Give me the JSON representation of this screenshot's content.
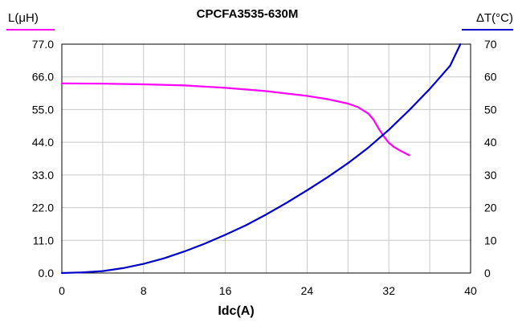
{
  "chart_data": {
    "type": "line",
    "title": "CPCFA3535-630M",
    "xlabel": "Idc(A)",
    "ylabel_left": "L(μH)",
    "ylabel_right": "ΔT(°C)",
    "xlim": [
      0,
      40
    ],
    "ylim_left": [
      0,
      77
    ],
    "ylim_right": [
      0,
      70
    ],
    "x_ticks": [
      "0",
      "8",
      "16",
      "24",
      "32",
      "40"
    ],
    "y_left_ticks": [
      "0.0",
      "11.0",
      "22.0",
      "33.0",
      "44.0",
      "55.0",
      "66.0",
      "77.0"
    ],
    "y_right_ticks": [
      "0",
      "10",
      "20",
      "30",
      "40",
      "50",
      "60",
      "70"
    ],
    "grid": true,
    "colors": {
      "inductance": "#ff00ff",
      "temperature": "#0000cc",
      "grid": "#c8c8c8"
    },
    "series": [
      {
        "axis": "left",
        "color": "#ff00ff",
        "x": [
          0,
          4,
          8,
          12,
          16,
          20,
          24,
          26,
          28,
          29,
          30,
          30.5,
          31,
          31.5,
          32,
          32.5,
          33,
          34
        ],
        "y": [
          63.8,
          63.7,
          63.5,
          63.1,
          62.3,
          61.2,
          59.6,
          58.5,
          57.0,
          55.8,
          53.6,
          51.6,
          48.6,
          46.0,
          43.8,
          42.4,
          41.4,
          39.6
        ]
      },
      {
        "axis": "right",
        "color": "#0000cc",
        "x": [
          0,
          2,
          4,
          6,
          8,
          10,
          12,
          14,
          16,
          18,
          20,
          22,
          24,
          26,
          28,
          30,
          32,
          34,
          36,
          38,
          39
        ],
        "y": [
          0,
          0.2,
          0.6,
          1.5,
          2.8,
          4.5,
          6.6,
          9.0,
          11.7,
          14.6,
          17.9,
          21.5,
          25.3,
          29.3,
          33.6,
          38.4,
          43.8,
          49.8,
          56.3,
          63.4,
          70
        ]
      }
    ]
  }
}
